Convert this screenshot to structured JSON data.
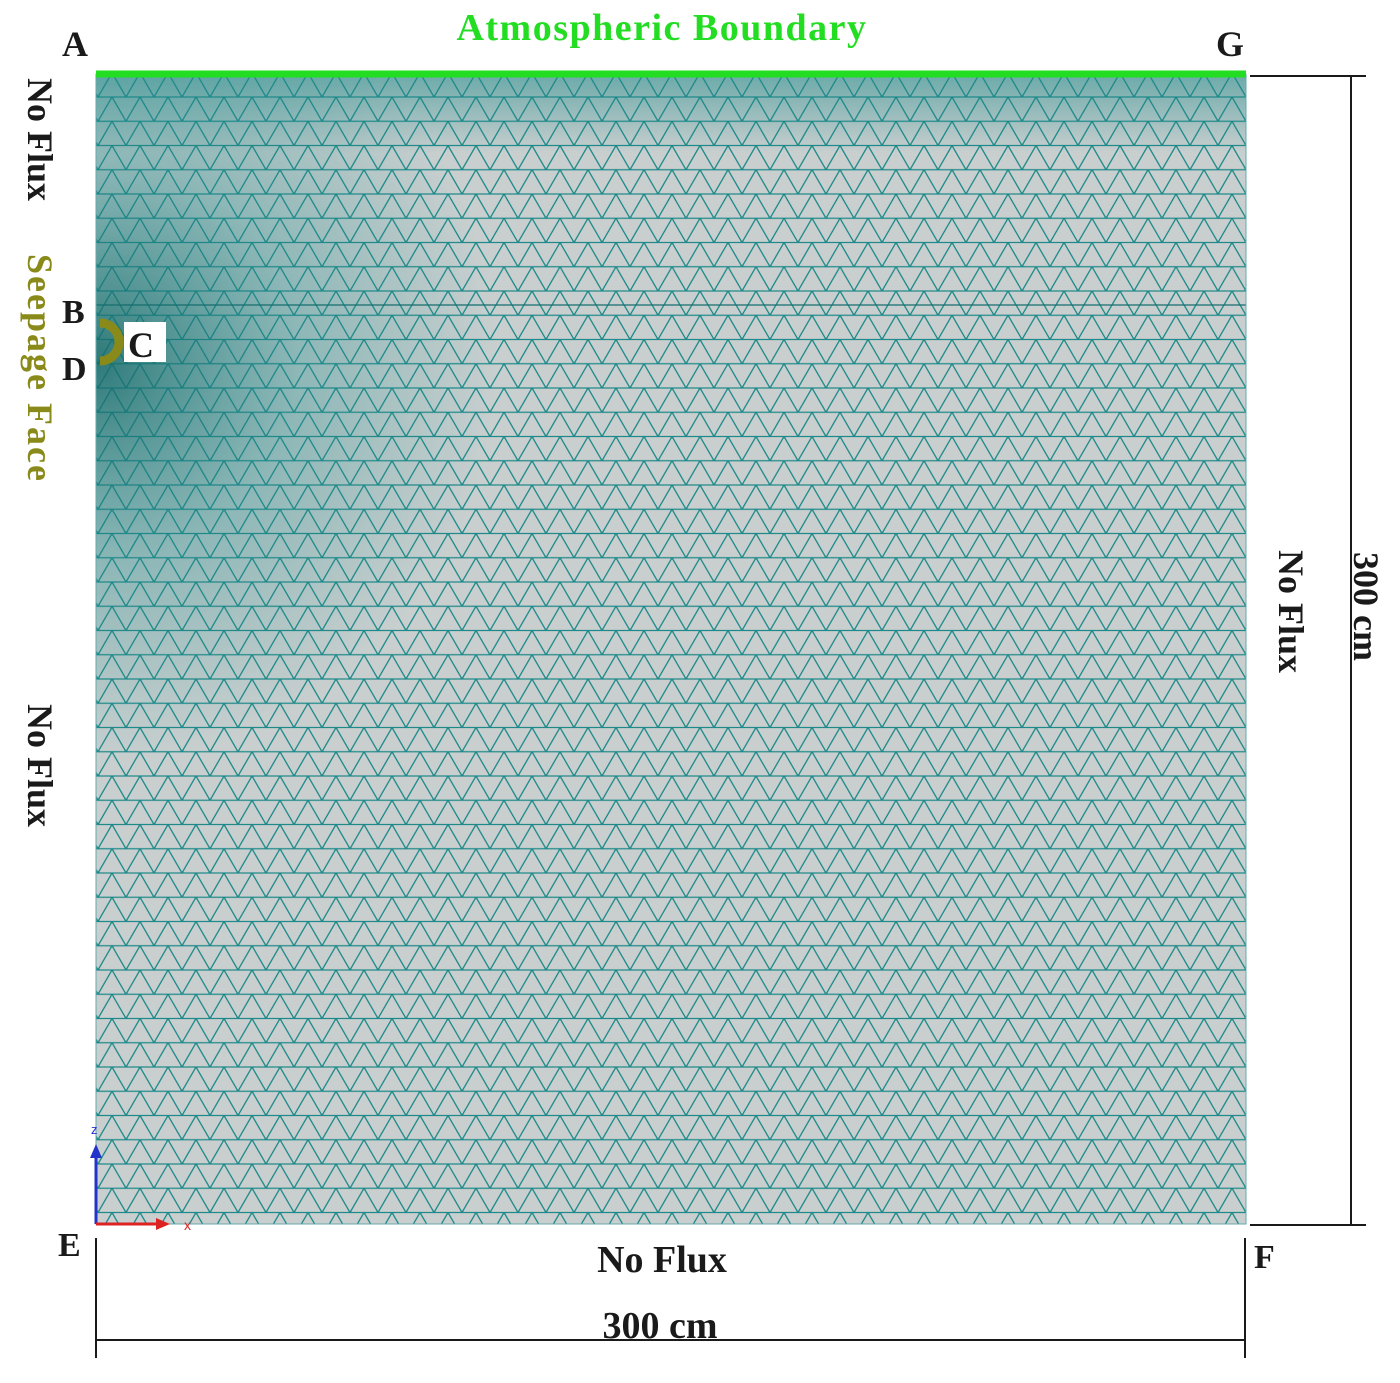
{
  "title": "Atmospheric Boundary",
  "corners": {
    "a": "A",
    "b": "B",
    "c": "C",
    "d": "D",
    "e": "E",
    "f": "F",
    "g": "G"
  },
  "boundaries": {
    "left_top": "No Flux",
    "left_seepage": "Seepage Face",
    "left_bottom": "No Flux",
    "right": "No Flux",
    "bottom": "No Flux"
  },
  "dimensions": {
    "width": "300 cm",
    "height": "300 cm"
  },
  "axes": {
    "x": "x",
    "z": "z"
  },
  "colors": {
    "mesh": "#1f8a8a",
    "mesh_bg": "#c9cfcf",
    "atmospheric": "#22dd22",
    "seepage": "#8a8a1a",
    "x_axis": "#dd2222",
    "z_axis": "#2233cc"
  }
}
